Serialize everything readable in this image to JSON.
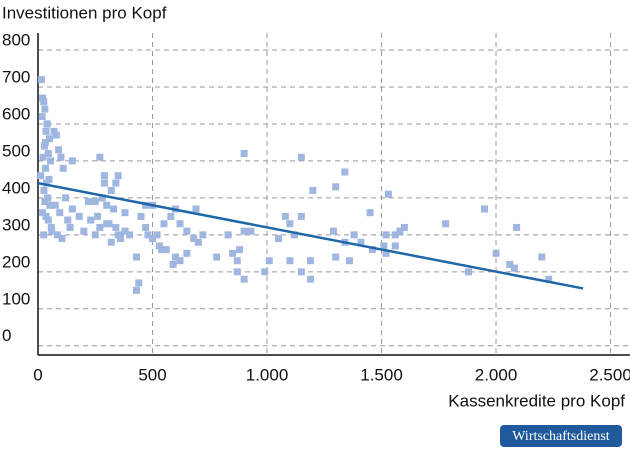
{
  "chart_data": {
    "type": "scatter",
    "y_label": "Investitionen pro Kopf",
    "x_label": "Kassenkredite pro Kopf",
    "source": "Wirtschaftsdienst",
    "xlim": [
      0,
      2585
    ],
    "ylim": [
      -25,
      846
    ],
    "xticks": [
      0,
      500,
      {
        "value": 1000,
        "label": "1.000"
      },
      {
        "value": 1500,
        "label": "1.500"
      },
      {
        "value": 2000,
        "label": "2.000"
      },
      {
        "value": 2500,
        "label": "2.500"
      }
    ],
    "yticks": [
      0,
      100,
      200,
      300,
      400,
      500,
      600,
      700,
      800
    ],
    "grid": true,
    "series": [
      {
        "type": "scatter",
        "color": "#9fb6e0",
        "x": [
          15,
          20,
          25,
          30,
          18,
          40,
          35,
          50,
          28,
          45,
          22,
          55,
          33,
          12,
          48,
          38,
          26,
          42,
          30,
          52,
          20,
          35,
          45,
          58,
          60,
          25,
          40,
          32,
          70,
          80,
          90,
          100,
          110,
          120,
          75,
          95,
          130,
          140,
          85,
          105,
          150,
          270,
          290,
          290,
          350,
          340,
          320,
          280,
          250,
          300,
          330,
          380,
          260,
          230,
          300,
          340,
          200,
          250,
          360,
          320,
          270,
          180,
          220,
          150,
          310,
          350,
          380,
          400,
          430,
          440,
          430,
          450,
          470,
          480,
          500,
          530,
          560,
          600,
          620,
          590,
          650,
          540,
          520,
          550,
          580,
          600,
          620,
          650,
          700,
          680,
          720,
          690,
          500,
          470,
          780,
          870,
          850,
          870,
          900,
          830,
          900,
          930,
          900,
          880,
          990,
          1010,
          1050,
          1100,
          1120,
          1100,
          1150,
          1190,
          1190,
          1080,
          1150,
          1150,
          1200,
          1300,
          1340,
          1300,
          1290,
          1340,
          1360,
          1380,
          1410,
          1460,
          1450,
          1510,
          1520,
          1520,
          1530,
          1560,
          1560,
          1580,
          1600,
          1780,
          1950,
          1880,
          2000,
          2060,
          2080,
          2090,
          2200,
          2230
        ],
        "values": [
          720,
          670,
          660,
          640,
          620,
          600,
          580,
          560,
          540,
          520,
          510,
          500,
          480,
          460,
          450,
          440,
          420,
          400,
          390,
          380,
          360,
          350,
          340,
          320,
          310,
          300,
          600,
          550,
          580,
          570,
          530,
          510,
          480,
          400,
          380,
          360,
          340,
          320,
          300,
          290,
          500,
          510,
          460,
          440,
          460,
          440,
          420,
          400,
          390,
          380,
          370,
          360,
          350,
          340,
          330,
          320,
          310,
          300,
          290,
          280,
          320,
          350,
          390,
          370,
          330,
          300,
          310,
          300,
          240,
          170,
          150,
          350,
          320,
          300,
          290,
          270,
          260,
          240,
          230,
          220,
          250,
          260,
          300,
          330,
          350,
          370,
          330,
          310,
          280,
          290,
          300,
          370,
          380,
          380,
          240,
          230,
          250,
          200,
          180,
          300,
          310,
          310,
          520,
          260,
          200,
          230,
          290,
          330,
          300,
          230,
          200,
          180,
          230,
          350,
          350,
          510,
          420,
          430,
          470,
          240,
          310,
          280,
          230,
          300,
          280,
          260,
          360,
          270,
          300,
          250,
          410,
          300,
          270,
          310,
          320,
          330,
          370,
          200,
          250,
          220,
          210,
          320,
          240,
          180
        ]
      },
      {
        "type": "line",
        "color": "#1f67a8",
        "x": [
          0,
          2380
        ],
        "values": [
          440,
          155
        ]
      }
    ]
  }
}
